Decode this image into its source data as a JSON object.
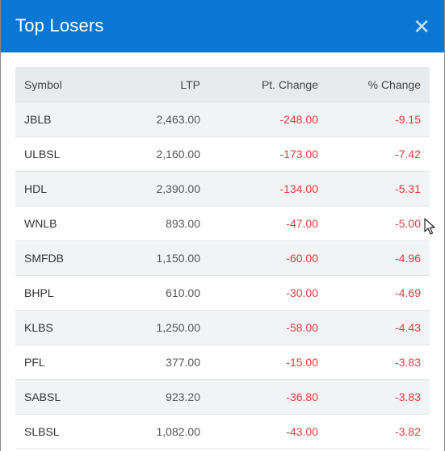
{
  "modal": {
    "title": "Top Losers",
    "close_icon": "close-icon",
    "header_color": "#0a78d2"
  },
  "table": {
    "columns": {
      "symbol": "Symbol",
      "ltp": "LTP",
      "pt_change": "Pt. Change",
      "pct_change": "% Change"
    },
    "rows": [
      {
        "symbol": "JBLB",
        "ltp": "2,463.00",
        "pt_change": "-248.00",
        "pct_change": "-9.15"
      },
      {
        "symbol": "ULBSL",
        "ltp": "2,160.00",
        "pt_change": "-173.00",
        "pct_change": "-7.42"
      },
      {
        "symbol": "HDL",
        "ltp": "2,390.00",
        "pt_change": "-134.00",
        "pct_change": "-5.31"
      },
      {
        "symbol": "WNLB",
        "ltp": "893.00",
        "pt_change": "-47.00",
        "pct_change": "-5.00"
      },
      {
        "symbol": "SMFDB",
        "ltp": "1,150.00",
        "pt_change": "-60.00",
        "pct_change": "-4.96"
      },
      {
        "symbol": "BHPL",
        "ltp": "610.00",
        "pt_change": "-30.00",
        "pct_change": "-4.69"
      },
      {
        "symbol": "KLBS",
        "ltp": "1,250.00",
        "pt_change": "-58.00",
        "pct_change": "-4.43"
      },
      {
        "symbol": "PFL",
        "ltp": "377.00",
        "pt_change": "-15.00",
        "pct_change": "-3.83"
      },
      {
        "symbol": "SABSL",
        "ltp": "923.20",
        "pt_change": "-36.80",
        "pct_change": "-3.83"
      },
      {
        "symbol": "SLBSL",
        "ltp": "1,082.00",
        "pt_change": "-43.00",
        "pct_change": "-3.82"
      }
    ],
    "negative_color": "#e23b3b"
  },
  "cursor": {
    "icon": "mouse-pointer-icon"
  }
}
